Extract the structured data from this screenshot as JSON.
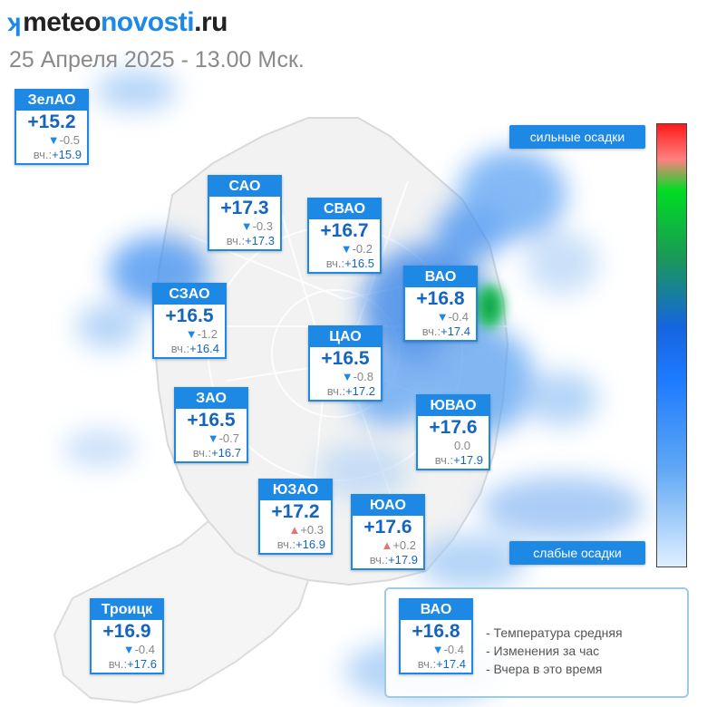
{
  "brand": {
    "mark": "ʞ",
    "part1": "meteo",
    "part2": "novosti",
    "part3": ".ru"
  },
  "subtitle": "25 Апреля 2025 - 13.00 Мск.",
  "scale": {
    "top_label": "сильные осадки",
    "bottom_label": "слабые осадки"
  },
  "districts": [
    {
      "id": "zelao",
      "name": "ЗелАО",
      "temp": "+15.2",
      "dir": "down",
      "arrow": "▼",
      "change": "-0.5",
      "yday_label": "вч.:",
      "yday": "+15.9"
    },
    {
      "id": "sao",
      "name": "САО",
      "temp": "+17.3",
      "dir": "down",
      "arrow": "▼",
      "change": "-0.3",
      "yday_label": "вч.:",
      "yday": "+17.3"
    },
    {
      "id": "svao",
      "name": "СВАО",
      "temp": "+16.7",
      "dir": "down",
      "arrow": "▼",
      "change": "-0.2",
      "yday_label": "вч.:",
      "yday": "+16.5"
    },
    {
      "id": "vao",
      "name": "ВАО",
      "temp": "+16.8",
      "dir": "down",
      "arrow": "▼",
      "change": "-0.4",
      "yday_label": "вч.:",
      "yday": "+17.4"
    },
    {
      "id": "szao",
      "name": "СЗАО",
      "temp": "+16.5",
      "dir": "down",
      "arrow": "▼",
      "change": "-1.2",
      "yday_label": "вч.:",
      "yday": "+16.4"
    },
    {
      "id": "cao",
      "name": "ЦАО",
      "temp": "+16.5",
      "dir": "down",
      "arrow": "▼",
      "change": "-0.8",
      "yday_label": "вч.:",
      "yday": "+17.2"
    },
    {
      "id": "zao",
      "name": "ЗАО",
      "temp": "+16.5",
      "dir": "down",
      "arrow": "▼",
      "change": "-0.7",
      "yday_label": "вч.:",
      "yday": "+16.7"
    },
    {
      "id": "yuvao",
      "name": "ЮВАО",
      "temp": "+17.6",
      "dir": "none",
      "arrow": "",
      "change": "0.0",
      "yday_label": "вч.:",
      "yday": "+17.9"
    },
    {
      "id": "yuzao",
      "name": "ЮЗАО",
      "temp": "+17.2",
      "dir": "up",
      "arrow": "▲",
      "change": "+0.3",
      "yday_label": "вч.:",
      "yday": "+16.9"
    },
    {
      "id": "yuao",
      "name": "ЮАО",
      "temp": "+17.6",
      "dir": "up",
      "arrow": "▲",
      "change": "+0.2",
      "yday_label": "вч.:",
      "yday": "+17.9"
    },
    {
      "id": "troitsk",
      "name": "Троицк",
      "temp": "+16.9",
      "dir": "down",
      "arrow": "▼",
      "change": "-0.4",
      "yday_label": "вч.:",
      "yday": "+17.6"
    }
  ],
  "legend": {
    "card": {
      "name": "ВАО",
      "temp": "+16.8",
      "dir": "down",
      "arrow": "▼",
      "change": "-0.4",
      "yday_label": "вч.:",
      "yday": "+17.4"
    },
    "line1": "- Температура средняя",
    "line2": "- Изменения за час",
    "line3": "- Вчера в это время"
  },
  "colors": {
    "accent": "#1e88e5",
    "temp_text": "#1565c0",
    "rise": "#e57373",
    "fall": "#1e88e5"
  }
}
